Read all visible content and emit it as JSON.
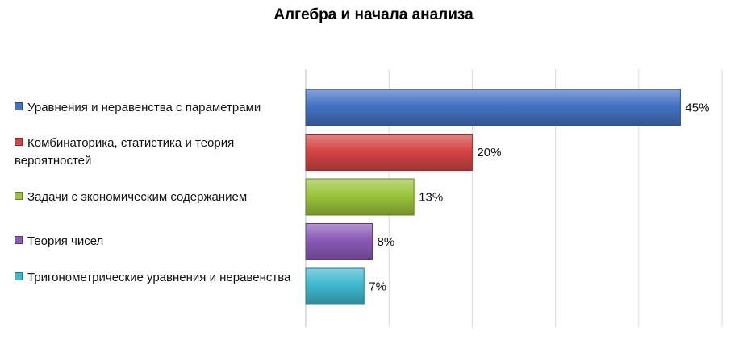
{
  "chart_data": {
    "type": "bar",
    "orientation": "horizontal",
    "title": "Алгебра и начала анализа",
    "categories": [
      "Уравнения и неравенства с параметрами",
      "Комбинаторика, статистика и теория вероятностей",
      "Задачи с экономическим содержанием",
      "Теория чисел",
      "Тригонометрические уравнения и неравенства"
    ],
    "values": [
      45,
      20,
      13,
      8,
      7
    ],
    "data_labels": [
      "45%",
      "20%",
      "13%",
      "8%",
      "7%"
    ],
    "colors": [
      "#4472c4",
      "#d64545",
      "#9bc43a",
      "#8a5bb8",
      "#3fb8d0"
    ],
    "xlim": [
      0,
      50
    ],
    "grid": "vertical",
    "legend": "left"
  }
}
